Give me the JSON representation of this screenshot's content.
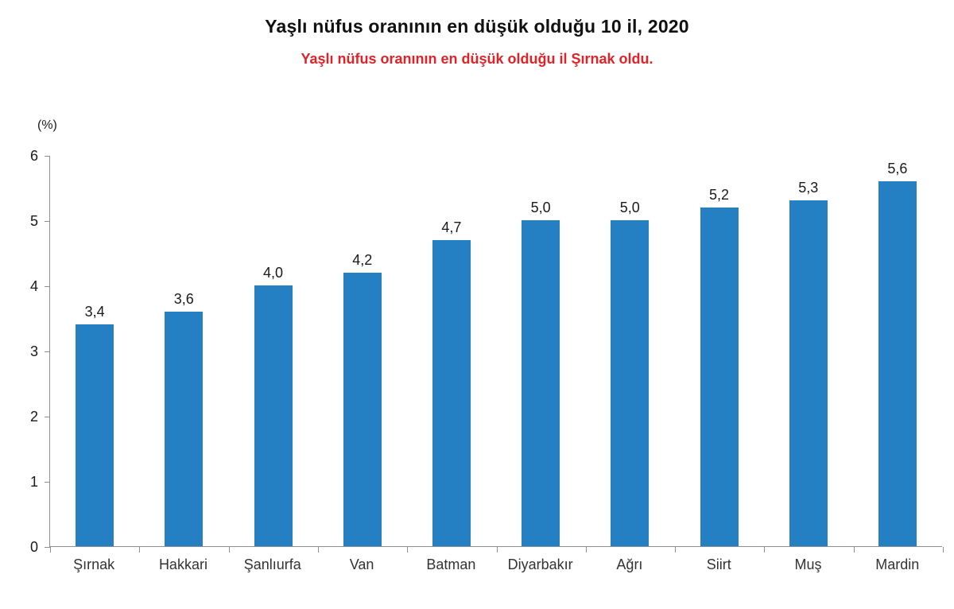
{
  "header": {
    "title": "Yaşlı nüfus oranının en düşük olduğu 10 il, 2020",
    "subtitle": "Yaşlı nüfus oranının en düşük olduğu il Şırnak oldu."
  },
  "chart_data": {
    "type": "bar",
    "title": "Yaşlı nüfus oranının en düşük olduğu 10 il, 2020",
    "subtitle": "Yaşlı nüfus oranının en düşük olduğu il Şırnak oldu.",
    "unit_label": "(%)",
    "categories": [
      "Şırnak",
      "Hakkari",
      "Şanlıurfa",
      "Van",
      "Batman",
      "Diyarbakır",
      "Ağrı",
      "Siirt",
      "Muş",
      "Mardin"
    ],
    "values": [
      3.4,
      3.6,
      4.0,
      4.2,
      4.7,
      5.0,
      5.0,
      5.2,
      5.3,
      5.6
    ],
    "value_labels": [
      "3,4",
      "3,6",
      "4,0",
      "4,2",
      "4,7",
      "5,0",
      "5,0",
      "5,2",
      "5,3",
      "5,6"
    ],
    "ylim": [
      0,
      6
    ],
    "yticks": [
      0,
      1,
      2,
      3,
      4,
      5,
      6
    ],
    "grid": false,
    "legend": "none",
    "xlabel": "",
    "ylabel": "(%)",
    "colors": {
      "bar": "#2480c2",
      "subtitle": "#e32227",
      "axis": "#909090",
      "title_text": "#111111",
      "category_text": "#333333"
    }
  }
}
